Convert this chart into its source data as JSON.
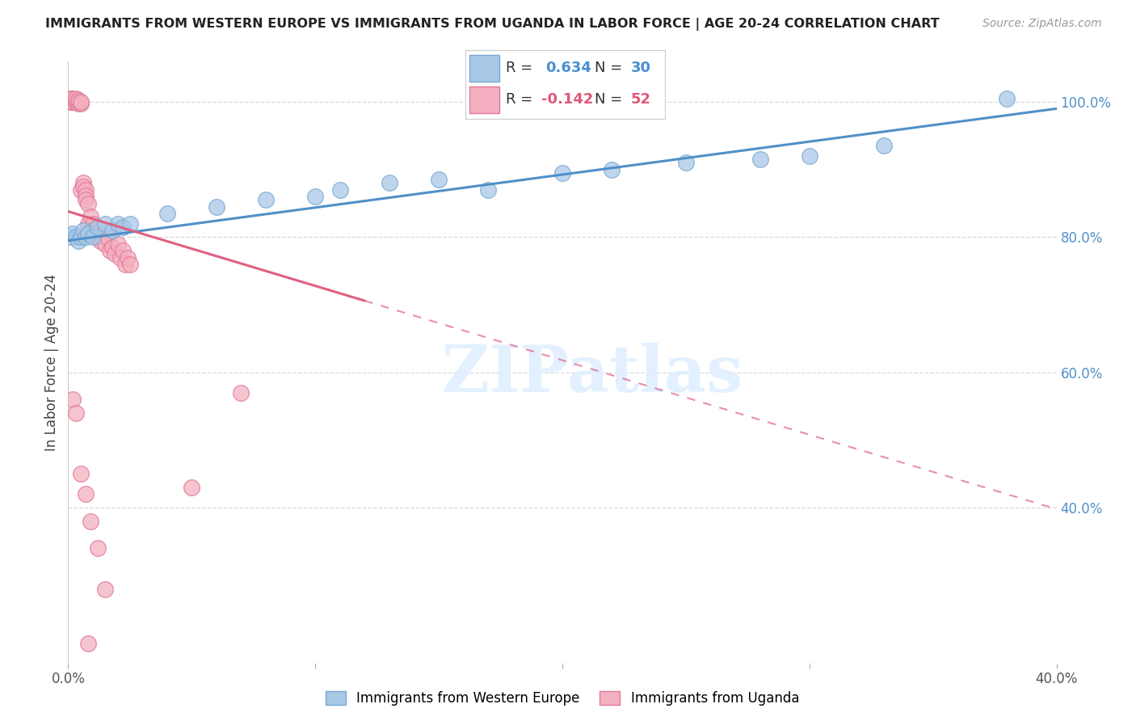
{
  "title": "IMMIGRANTS FROM WESTERN EUROPE VS IMMIGRANTS FROM UGANDA IN LABOR FORCE | AGE 20-24 CORRELATION CHART",
  "source": "Source: ZipAtlas.com",
  "ylabel": "In Labor Force | Age 20-24",
  "xlim": [
    0.0,
    0.4
  ],
  "ylim": [
    0.17,
    1.06
  ],
  "yticks_right": [
    0.4,
    0.6,
    0.8,
    1.0
  ],
  "ytick_labels_right": [
    "40.0%",
    "60.0%",
    "80.0%",
    "100.0%"
  ],
  "blue_R": 0.634,
  "blue_N": 30,
  "pink_R": -0.142,
  "pink_N": 52,
  "blue_color": "#a8c8e8",
  "pink_color": "#f4b0c0",
  "blue_edge": "#7aa8d0",
  "pink_edge": "#e07898",
  "blue_trend_color": "#5090c8",
  "pink_trend_color": "#e06080",
  "legend_blue_label": "Immigrants from Western Europe",
  "legend_pink_label": "Immigrants from Uganda",
  "watermark": "ZIPatlas",
  "background_color": "#ffffff",
  "grid_color": "#d8d8e8",
  "blue_x": [
    0.001,
    0.002,
    0.003,
    0.004,
    0.005,
    0.006,
    0.007,
    0.008,
    0.01,
    0.012,
    0.015,
    0.018,
    0.02,
    0.022,
    0.025,
    0.04,
    0.06,
    0.08,
    0.1,
    0.11,
    0.13,
    0.15,
    0.17,
    0.2,
    0.22,
    0.25,
    0.28,
    0.3,
    0.33,
    0.38
  ],
  "blue_y": [
    0.8,
    0.805,
    0.8,
    0.795,
    0.8,
    0.81,
    0.8,
    0.805,
    0.8,
    0.815,
    0.82,
    0.81,
    0.82,
    0.815,
    0.82,
    0.835,
    0.845,
    0.855,
    0.86,
    0.87,
    0.88,
    0.885,
    0.87,
    0.895,
    0.9,
    0.91,
    0.915,
    0.92,
    0.935,
    1.005
  ],
  "pink_x": [
    0.001,
    0.001,
    0.001,
    0.002,
    0.002,
    0.002,
    0.002,
    0.003,
    0.003,
    0.004,
    0.004,
    0.004,
    0.004,
    0.005,
    0.005,
    0.005,
    0.006,
    0.006,
    0.007,
    0.007,
    0.007,
    0.008,
    0.008,
    0.009,
    0.009,
    0.01,
    0.01,
    0.011,
    0.012,
    0.013,
    0.014,
    0.015,
    0.016,
    0.017,
    0.018,
    0.019,
    0.02,
    0.021,
    0.022,
    0.023,
    0.024,
    0.025,
    0.002,
    0.003,
    0.005,
    0.007,
    0.009,
    0.012,
    0.05,
    0.07,
    0.008,
    0.015
  ],
  "pink_y": [
    1.0,
    1.005,
    1.005,
    1.0,
    1.0,
    1.0,
    1.005,
    1.0,
    1.005,
    1.0,
    1.0,
    0.998,
    1.002,
    0.998,
    1.0,
    0.87,
    0.88,
    0.875,
    0.87,
    0.862,
    0.855,
    0.85,
    0.82,
    0.83,
    0.81,
    0.82,
    0.81,
    0.805,
    0.8,
    0.795,
    0.8,
    0.79,
    0.8,
    0.78,
    0.785,
    0.775,
    0.79,
    0.77,
    0.78,
    0.76,
    0.77,
    0.76,
    0.56,
    0.54,
    0.45,
    0.42,
    0.38,
    0.34,
    0.43,
    0.57,
    0.2,
    0.28
  ]
}
